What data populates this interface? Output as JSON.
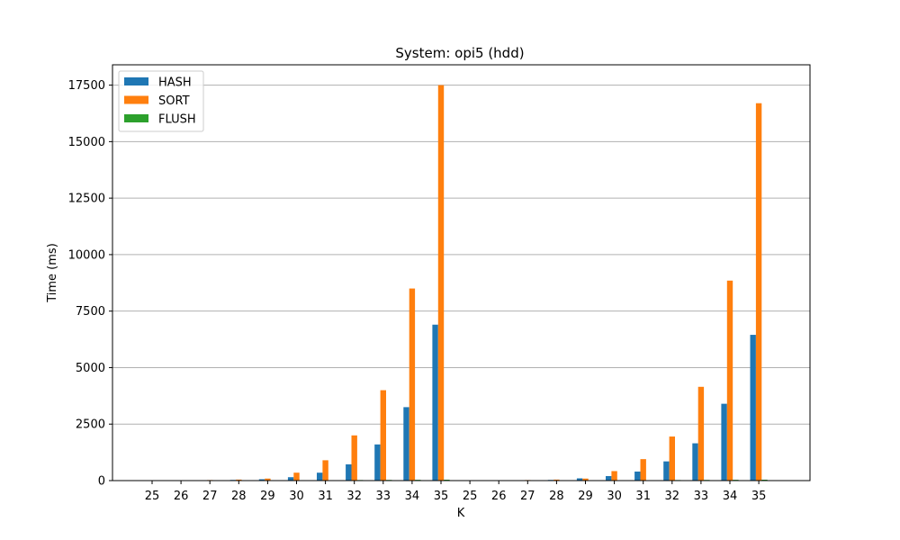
{
  "chart_data": {
    "type": "bar",
    "title": "System: opi5 (hdd)",
    "xlabel": "K",
    "ylabel": "Time (ms)",
    "ylim": [
      0,
      18400
    ],
    "yticks": [
      0,
      2500,
      5000,
      7500,
      10000,
      12500,
      15000,
      17500
    ],
    "ytick_labels": [
      "0",
      "2500",
      "5000",
      "7500",
      "10000",
      "12500",
      "15000",
      "17500"
    ],
    "grid": "horizontal",
    "legend_position": "top-left",
    "categories": [
      "25",
      "26",
      "27",
      "28",
      "29",
      "30",
      "31",
      "32",
      "33",
      "34",
      "35",
      "25",
      "26",
      "27",
      "28",
      "29",
      "30",
      "31",
      "32",
      "33",
      "34",
      "35"
    ],
    "series": [
      {
        "name": "HASH",
        "color": "#1f77b4",
        "values": [
          5,
          8,
          15,
          30,
          60,
          150,
          350,
          720,
          1600,
          3250,
          6900,
          5,
          8,
          15,
          30,
          100,
          200,
          400,
          850,
          1650,
          3400,
          6450
        ]
      },
      {
        "name": "SORT",
        "color": "#ff7f0e",
        "values": [
          10,
          15,
          25,
          45,
          90,
          350,
          900,
          2000,
          4000,
          8500,
          17500,
          10,
          15,
          25,
          45,
          90,
          420,
          950,
          1950,
          4150,
          8850,
          16700
        ]
      },
      {
        "name": "FLUSH",
        "color": "#2ca02c",
        "values": [
          2,
          3,
          5,
          10,
          15,
          20,
          20,
          25,
          30,
          35,
          40,
          2,
          3,
          5,
          10,
          15,
          20,
          20,
          25,
          30,
          35,
          40
        ]
      }
    ]
  }
}
